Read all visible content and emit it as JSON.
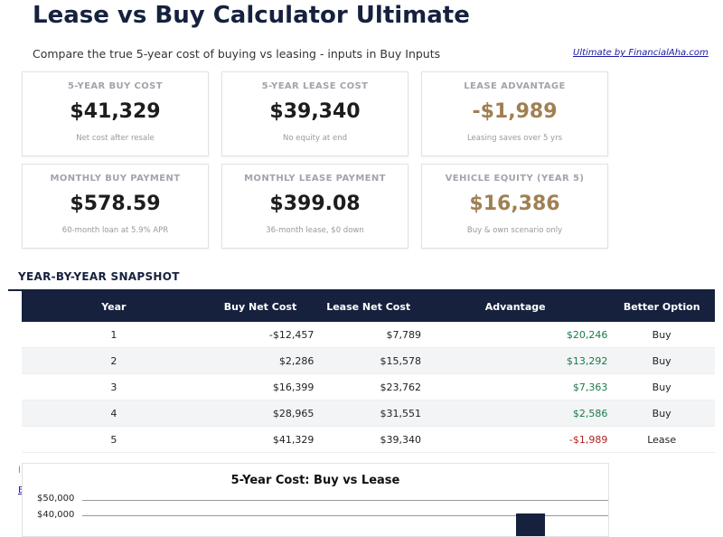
{
  "header": {
    "title": "Lease vs Buy Calculator Ultimate",
    "subtitle": "Compare the true 5-year cost of buying vs leasing - inputs in Buy Inputs",
    "link": "Ultimate by FinancialAha.com"
  },
  "cards": [
    {
      "label": "5-YEAR BUY COST",
      "value": "$41,329",
      "note": "Net cost after resale"
    },
    {
      "label": "5-YEAR LEASE COST",
      "value": "$39,340",
      "note": "No equity at end"
    },
    {
      "label": "LEASE ADVANTAGE",
      "value": "-$1,989",
      "note": "Leasing saves over 5 yrs"
    },
    {
      "label": "MONTHLY BUY PAYMENT",
      "value": "$578.59",
      "note": "60-month loan at 5.9% APR"
    },
    {
      "label": "MONTHLY LEASE PAYMENT",
      "value": "$399.08",
      "note": "36-month lease, $0 down"
    },
    {
      "label": "VEHICLE EQUITY (YEAR 5)",
      "value": "$16,386",
      "note": "Buy & own scenario only"
    }
  ],
  "colors": {
    "navy": "#16213e",
    "gold": "#a08052",
    "positive": "#1a7a4a",
    "negative": "#b22222"
  },
  "snapshot": {
    "title": "YEAR-BY-YEAR SNAPSHOT",
    "columns": [
      "Year",
      "Buy Net Cost",
      "Lease Net Cost",
      "Advantage",
      "Better Option"
    ],
    "rows": [
      [
        "1",
        "-$12,457",
        "$7,789",
        "$20,246",
        "Buy"
      ],
      [
        "2",
        "$2,286",
        "$15,578",
        "$13,292",
        "Buy"
      ],
      [
        "3",
        "$16,399",
        "$23,762",
        "$7,363",
        "Buy"
      ],
      [
        "4",
        "$28,965",
        "$31,551",
        "$2,586",
        "Buy"
      ],
      [
        "5",
        "$41,329",
        "$39,340",
        "-$1,989",
        "Lease"
      ]
    ]
  },
  "chart_data": {
    "type": "bar",
    "title": "5-Year Cost: Buy vs Lease",
    "yticks": [
      "$50,000",
      "$40,000"
    ],
    "ylim": [
      0,
      50000
    ],
    "grid": true,
    "visible_values": [
      41329
    ]
  }
}
